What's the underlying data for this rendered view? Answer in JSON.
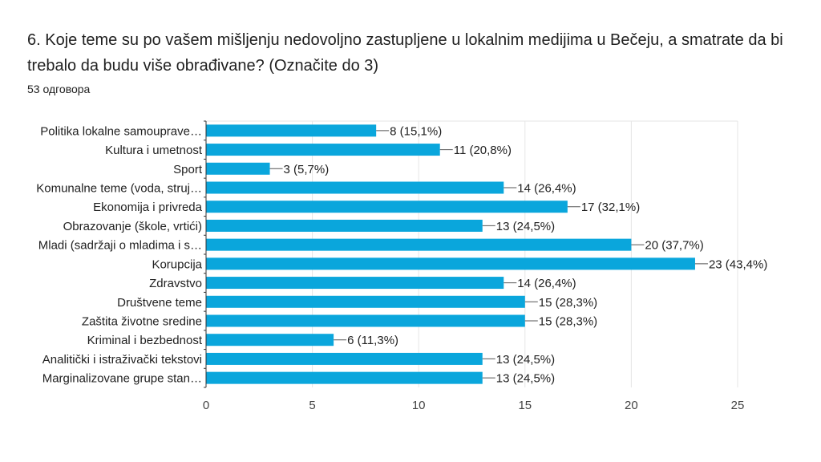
{
  "title": "6. Koje teme su po vašem mišljenju nedovoljno zastupljene u lokalnim medijima u Bečeju, a smatrate da bi trebalo da budu više obrađivane? (Označite do 3)",
  "subtitle": "53 одговора",
  "colors": {
    "bar": "#0aa6dc",
    "grid": "#e6e6e6",
    "axis": "#333333"
  },
  "chart_data": {
    "type": "bar",
    "orientation": "horizontal",
    "categories": [
      "Politika lokalne samouprave…",
      "Kultura i umetnost",
      "Sport",
      "Komunalne teme (voda, struj…",
      "Ekonomija i privreda",
      "Obrazovanje (škole, vrtići)",
      "Mladi (sadržaji o mladima i s…",
      "Korupcija",
      "Zdravstvo",
      "Društvene teme",
      "Zaštita životne sredine",
      "Kriminal i bezbednost",
      "Analitički i istraživački tekstovi",
      "Marginalizovane grupe stan…"
    ],
    "values": [
      8,
      11,
      3,
      14,
      17,
      13,
      20,
      23,
      14,
      15,
      15,
      6,
      13,
      13
    ],
    "data_labels": [
      "8 (15,1%)",
      "11 (20,8%)",
      "3 (5,7%)",
      "14 (26,4%)",
      "17 (32,1%)",
      "13 (24,5%)",
      "20 (37,7%)",
      "23 (43,4%)",
      "14 (26,4%)",
      "15 (28,3%)",
      "15 (28,3%)",
      "6 (11,3%)",
      "13 (24,5%)",
      "13 (24,5%)"
    ],
    "xlim": [
      0,
      25
    ],
    "xticks": [
      0,
      5,
      10,
      15,
      20,
      25
    ],
    "grid": true,
    "legend": false
  }
}
